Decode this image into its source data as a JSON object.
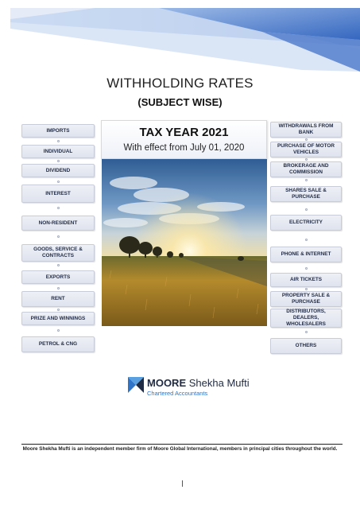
{
  "document": {
    "title": "WITHHOLDING RATES",
    "subtitle": "(SUBJECT WISE)"
  },
  "tax_card": {
    "year": "TAX YEAR 2021",
    "effective": "With effect from July 01, 2020"
  },
  "left_items": [
    {
      "label": "IMPORTS"
    },
    {
      "label": "INDIVIDUAL"
    },
    {
      "label": "DIVIDEND"
    },
    {
      "label": "INTEREST"
    },
    {
      "label": "NON-RESIDENT"
    },
    {
      "label": "GOODS, SERVICE & CONTRACTS"
    },
    {
      "label": "EXPORTS"
    },
    {
      "label": "RENT"
    },
    {
      "label": "PRIZE AND WINNINGS"
    },
    {
      "label": "PETROL & CNG"
    }
  ],
  "right_items": [
    {
      "label": "WITHDRAWALS FROM BANK"
    },
    {
      "label": "PURCHASE OF MOTOR VEHICLES"
    },
    {
      "label": "BROKERAGE AND COMMISSION"
    },
    {
      "label": "SHARES SALE & PURCHASE"
    },
    {
      "label": "ELECTRICITY"
    },
    {
      "label": "PHONE & INTERNET"
    },
    {
      "label": "AIR TICKETS"
    },
    {
      "label": "PROPERTY SALE & PURCHASE"
    },
    {
      "label": "DISTRIBUTORS, DEALERS, WHOLESALERS"
    },
    {
      "label": "OTHERS"
    }
  ],
  "logo": {
    "name_bold": "MOORE",
    "name_rest": "Shekha Mufti",
    "tagline": "Chartered Accountants"
  },
  "footer": {
    "text": "Moore Shekha Mufti is an independent member firm of Moore Global International, members in principal cities throughout the world."
  },
  "colors": {
    "banner_dark": "#2f5cb5",
    "banner_light": "#8fb2e3",
    "button_text": "#1f2a44",
    "logo_blue": "#2f74c7"
  }
}
